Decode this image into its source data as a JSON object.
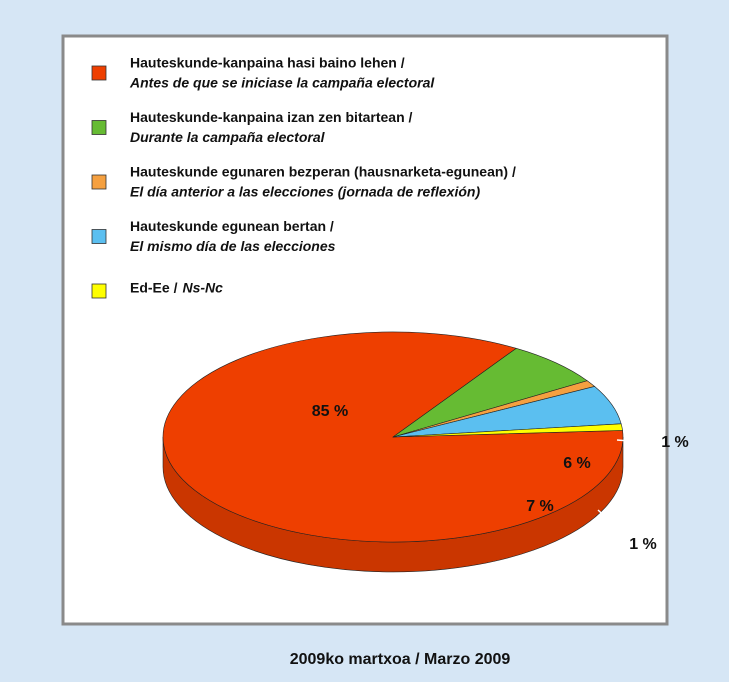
{
  "chart_data": {
    "type": "pie",
    "categories": [
      "Hauteskunde-kanpaina hasi baino lehen /",
      "Hauteskunde-kanpaina izan zen bitartean /",
      "Hauteskunde egunaren bezperan (hausnarketa-egunean) /",
      "Hauteskunde egunean bertan /",
      "Ed-Ee /"
    ],
    "categories_es": [
      "Antes de que se iniciase la campaña electoral",
      "Durante la campaña electoral",
      "El día anterior a las elecciones (jornada de reflexión)",
      "El mismo día de las elecciones",
      "Ns-Nc"
    ],
    "values": [
      85,
      7,
      1,
      6,
      1
    ],
    "value_labels": [
      "85 %",
      "7 %",
      "1 %",
      "6 %",
      "1 %"
    ],
    "colors": [
      "#ee3f00",
      "#66bb33",
      "#f5a040",
      "#5bbff0",
      "#ffff00"
    ],
    "caption": "2009ko martxoa / Marzo 2009"
  }
}
